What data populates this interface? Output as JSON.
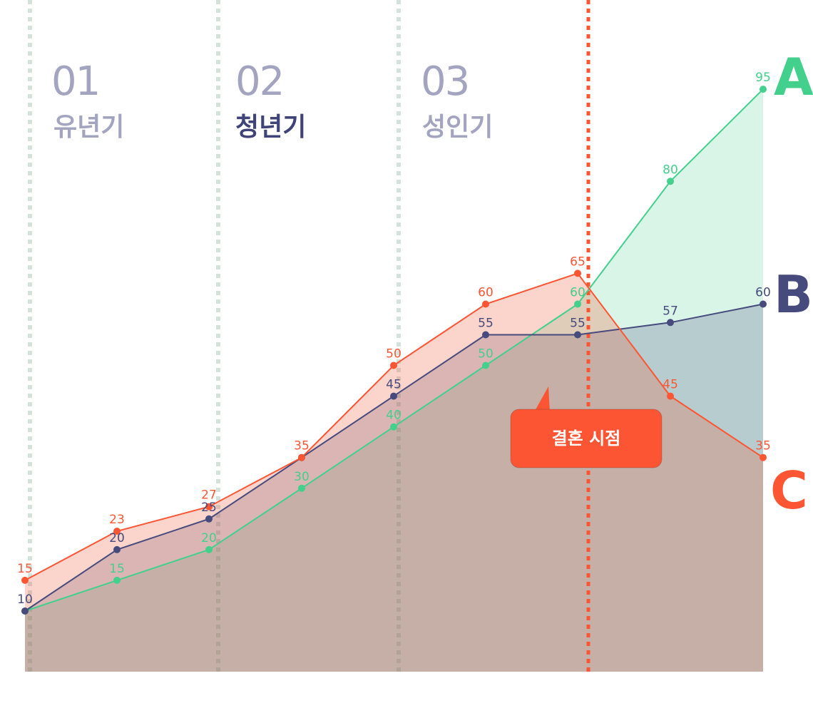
{
  "phases": [
    {
      "number": "01",
      "name": "유년기",
      "active": false
    },
    {
      "number": "02",
      "name": "청년기",
      "active": true
    },
    {
      "number": "03",
      "name": "성인기",
      "active": false
    }
  ],
  "callout": {
    "label": "결혼 시점"
  },
  "colors": {
    "A": "#43cf8c",
    "B": "#464a7c",
    "C": "#fc5533",
    "phase_line": "#d5e2dc",
    "marker_line": "#fc5533"
  },
  "chart_data": {
    "type": "area",
    "x": [
      0,
      1,
      2,
      3,
      4,
      5,
      6,
      7,
      8
    ],
    "ylim": [
      0,
      100
    ],
    "marker_after_index": 6,
    "series": [
      {
        "name": "A",
        "values": [
          10,
          15,
          20,
          30,
          40,
          50,
          60,
          80,
          95
        ],
        "labels": [
          "",
          "15",
          "20",
          "30",
          "40",
          "50",
          "60",
          "80",
          "95"
        ]
      },
      {
        "name": "B",
        "values": [
          10,
          20,
          25,
          35,
          45,
          55,
          55,
          57,
          60
        ],
        "labels": [
          "10",
          "20",
          "25",
          "",
          "45",
          "55",
          "55",
          "57",
          "60"
        ]
      },
      {
        "name": "C",
        "values": [
          15,
          23,
          27,
          35,
          50,
          60,
          65,
          45,
          35
        ],
        "labels": [
          "15",
          "23",
          "27",
          "35",
          "50",
          "60",
          "65",
          "45",
          "35"
        ]
      }
    ]
  }
}
